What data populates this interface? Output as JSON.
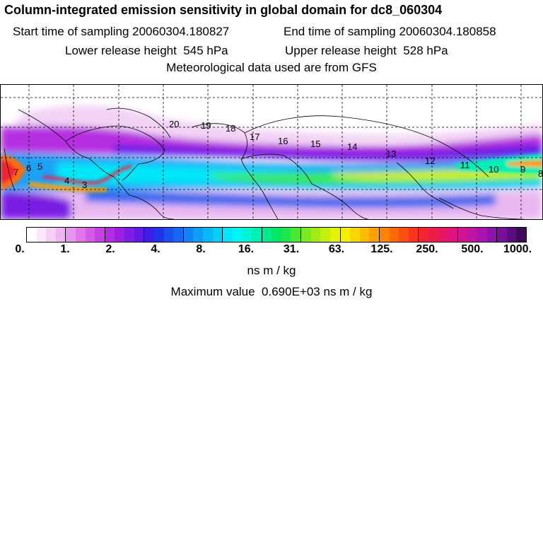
{
  "title": "Column-integrated emission sensitivity in global domain for dc8_060304",
  "start_label": "Start time of sampling",
  "start_value": "20060304.180827",
  "end_label": "End time of sampling",
  "end_value": "20060304.180858",
  "lower_label": "Lower release height",
  "lower_value": "545 hPa",
  "upper_label": "Upper release height",
  "upper_value": "528 hPa",
  "met_text": "Meteorological data used are from GFS",
  "colorbar": {
    "ticks": [
      "0.",
      "1.",
      "2.",
      "4.",
      "8.",
      "16.",
      "31.",
      "63.",
      "125.",
      "250.",
      "500.",
      "1000."
    ],
    "colors": [
      "#ffffff",
      "#fbe6fb",
      "#f6cff7",
      "#f0b3f3",
      "#e994ee",
      "#e075ea",
      "#d55be6",
      "#c742e2",
      "#b32ce0",
      "#9a1fe0",
      "#7f1be3",
      "#6219e6",
      "#3f1de9",
      "#2233ec",
      "#1a4ff0",
      "#1668f2",
      "#1283f4",
      "#0e9ef6",
      "#0ab8f7",
      "#07cff8",
      "#03e6f9",
      "#00f7f5",
      "#00f4d6",
      "#00f0b3",
      "#00ec8c",
      "#00e868",
      "#1fe64a",
      "#4be831",
      "#78ea1f",
      "#a2ec12",
      "#c6ef0a",
      "#e4f205",
      "#f7ee04",
      "#fcd604",
      "#febb04",
      "#ffa004",
      "#ff8405",
      "#ff6a08",
      "#ff4f10",
      "#fa351c",
      "#f4232e",
      "#ee1a48",
      "#e81563",
      "#de137d",
      "#cf1394",
      "#bd14a3",
      "#a814ad",
      "#8e13a9",
      "#751097",
      "#5b0c7f",
      "#3f0a5c"
    ]
  },
  "units": "ns m / kg",
  "max_label": "Maximum value",
  "max_value": "0.690E+03 ns m / kg",
  "map_labels": [
    "20",
    "19",
    "18",
    "17",
    "16",
    "15",
    "14",
    "13",
    "12",
    "11",
    "10",
    "9",
    "8",
    "7",
    "6",
    "5",
    "4",
    "3"
  ]
}
